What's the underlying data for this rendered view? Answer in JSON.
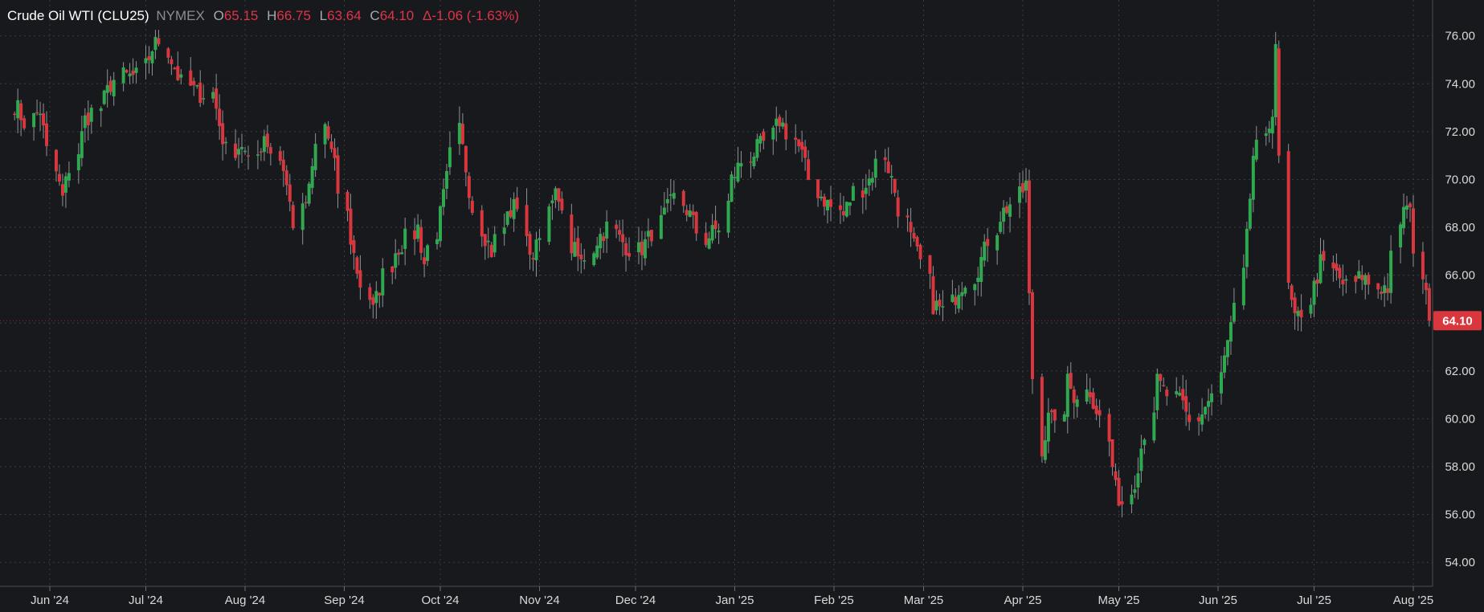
{
  "header": {
    "symbol": "Crude Oil WTI (CLU25)",
    "exchange": "NYMEX",
    "open_label": "O",
    "open": "65.15",
    "high_label": "H",
    "high": "66.75",
    "low_label": "L",
    "low": "63.64",
    "close_label": "C",
    "close": "64.10",
    "change": "Δ-1.06 (-1.63%)"
  },
  "colors": {
    "background": "#17191c",
    "up": "#2fa84f",
    "down": "#d9363e",
    "grid": "#3a3d42",
    "axis_text": "#d9d9d9",
    "price_tag": "#d9363e"
  },
  "chart_data": {
    "type": "candlestick",
    "y_axis": {
      "position": "right",
      "min": 53,
      "max": 77.5,
      "ticks": [
        "54.00",
        "56.00",
        "58.00",
        "60.00",
        "62.00",
        "64.00",
        "66.00",
        "68.00",
        "70.00",
        "72.00",
        "74.00",
        "76.00"
      ]
    },
    "x_axis": {
      "labels": [
        "Jun '24",
        "Jul '24",
        "Aug '24",
        "Sep '24",
        "Oct '24",
        "Nov '24",
        "Dec '24",
        "Jan '25",
        "Feb '25",
        "Mar '25",
        "Apr '25",
        "May '25",
        "Jun '25",
        "Jul '25",
        "Aug '25"
      ]
    },
    "last_price": "64.10",
    "grid": true,
    "close_series_approx": [
      {
        "date": "May 21 '24",
        "close": 73.2
      },
      {
        "date": "May 24 '24",
        "close": 72.4
      },
      {
        "date": "May 29 '24",
        "close": 72.9
      },
      {
        "date": "Jun 03 '24",
        "close": 70.3
      },
      {
        "date": "Jun 05 '24",
        "close": 69.2
      },
      {
        "date": "Jun 07 '24",
        "close": 70.5
      },
      {
        "date": "Jun 12 '24",
        "close": 72.5
      },
      {
        "date": "Jun 17 '24",
        "close": 73.0
      },
      {
        "date": "Jun 20 '24",
        "close": 74.0
      },
      {
        "date": "Jun 24 '24",
        "close": 74.3
      },
      {
        "date": "Jun 28 '24",
        "close": 74.3
      },
      {
        "date": "Jul 03 '24",
        "close": 75.5
      },
      {
        "date": "Jul 05 '24",
        "close": 75.8
      },
      {
        "date": "Jul 09 '24",
        "close": 75.0
      },
      {
        "date": "Jul 12 '24",
        "close": 74.0
      },
      {
        "date": "Jul 17 '24",
        "close": 73.6
      },
      {
        "date": "Jul 22 '24",
        "close": 73.6
      },
      {
        "date": "Jul 24 '24",
        "close": 72.3
      },
      {
        "date": "Jul 26 '24",
        "close": 71.2
      },
      {
        "date": "Jul 31 '24",
        "close": 71.5
      },
      {
        "date": "Aug 02 '24",
        "close": 70.6
      },
      {
        "date": "Aug 07 '24",
        "close": 71.9
      },
      {
        "date": "Aug 09 '24",
        "close": 71.2
      },
      {
        "date": "Aug 13 '24",
        "close": 70.5
      },
      {
        "date": "Aug 16 '24",
        "close": 68.2
      },
      {
        "date": "Aug 21 '24",
        "close": 69.5
      },
      {
        "date": "Aug 26 '24",
        "close": 72.3
      },
      {
        "date": "Aug 29 '24",
        "close": 70.5
      },
      {
        "date": "Sep 03 '24",
        "close": 67.5
      },
      {
        "date": "Sep 05 '24",
        "close": 66.2
      },
      {
        "date": "Sep 10 '24",
        "close": 64.5
      },
      {
        "date": "Sep 13 '24",
        "close": 66.0
      },
      {
        "date": "Sep 17 '24",
        "close": 67.0
      },
      {
        "date": "Sep 20 '24",
        "close": 67.5
      },
      {
        "date": "Sep 24 '24",
        "close": 68.0
      },
      {
        "date": "Sep 26 '24",
        "close": 66.5
      },
      {
        "date": "Oct 01 '24",
        "close": 68.5
      },
      {
        "date": "Oct 03 '24",
        "close": 70.0
      },
      {
        "date": "Oct 07 '24",
        "close": 72.0
      },
      {
        "date": "Oct 09 '24",
        "close": 70.5
      },
      {
        "date": "Oct 14 '24",
        "close": 68.0
      },
      {
        "date": "Oct 17 '24",
        "close": 67.0
      },
      {
        "date": "Oct 22 '24",
        "close": 68.5
      },
      {
        "date": "Oct 25 '24",
        "close": 69.0
      },
      {
        "date": "Oct 29 '24",
        "close": 66.5
      },
      {
        "date": "Oct 31 '24",
        "close": 67.5
      },
      {
        "date": "Nov 05 '24",
        "close": 69.0
      },
      {
        "date": "Nov 07 '24",
        "close": 69.5
      },
      {
        "date": "Nov 11 '24",
        "close": 67.2
      },
      {
        "date": "Nov 14 '24",
        "close": 66.5
      },
      {
        "date": "Nov 19 '24",
        "close": 67.5
      },
      {
        "date": "Nov 22 '24",
        "close": 68.0
      },
      {
        "date": "Nov 26 '24",
        "close": 67.5
      },
      {
        "date": "Dec 02 '24",
        "close": 67.0
      },
      {
        "date": "Dec 05 '24",
        "close": 67.5
      },
      {
        "date": "Dec 10 '24",
        "close": 68.5
      },
      {
        "date": "Dec 13 '24",
        "close": 69.2
      },
      {
        "date": "Dec 18 '24",
        "close": 68.5
      },
      {
        "date": "Dec 23 '24",
        "close": 67.5
      },
      {
        "date": "Dec 27 '24",
        "close": 68.0
      },
      {
        "date": "Dec 31 '24",
        "close": 70.0
      },
      {
        "date": "Jan 06 '25",
        "close": 71.0
      },
      {
        "date": "Jan 10 '25",
        "close": 71.5
      },
      {
        "date": "Jan 15 '25",
        "close": 72.5
      },
      {
        "date": "Jan 17 '25",
        "close": 72.0
      },
      {
        "date": "Jan 22 '25",
        "close": 71.0
      },
      {
        "date": "Jan 27 '25",
        "close": 69.5
      },
      {
        "date": "Jan 30 '25",
        "close": 69.0
      },
      {
        "date": "Feb 04 '25",
        "close": 68.5
      },
      {
        "date": "Feb 07 '25",
        "close": 69.5
      },
      {
        "date": "Feb 12 '25",
        "close": 70.0
      },
      {
        "date": "Feb 17 '25",
        "close": 71.0
      },
      {
        "date": "Feb 20 '25",
        "close": 69.5
      },
      {
        "date": "Feb 25 '25",
        "close": 67.5
      },
      {
        "date": "Feb 28 '25",
        "close": 66.5
      },
      {
        "date": "Mar 04 '25",
        "close": 64.8
      },
      {
        "date": "Mar 07 '25",
        "close": 64.5
      },
      {
        "date": "Mar 12 '25",
        "close": 65.5
      },
      {
        "date": "Mar 17 '25",
        "close": 66.0
      },
      {
        "date": "Mar 20 '25",
        "close": 67.0
      },
      {
        "date": "Mar 25 '25",
        "close": 68.5
      },
      {
        "date": "Mar 28 '25",
        "close": 69.0
      },
      {
        "date": "Apr 02 '25",
        "close": 69.8
      },
      {
        "date": "Apr 03 '25",
        "close": 65.0
      },
      {
        "date": "Apr 07 '25",
        "close": 58.5
      },
      {
        "date": "Apr 09 '25",
        "close": 60.5
      },
      {
        "date": "Apr 11 '25",
        "close": 59.5
      },
      {
        "date": "Apr 15 '25",
        "close": 61.5
      },
      {
        "date": "Apr 17 '25",
        "close": 61.0
      },
      {
        "date": "Apr 22 '25",
        "close": 61.2
      },
      {
        "date": "Apr 25 '25",
        "close": 60.0
      },
      {
        "date": "Apr 30 '25",
        "close": 57.0
      },
      {
        "date": "May 02 '25",
        "close": 56.5
      },
      {
        "date": "May 06 '25",
        "close": 57.5
      },
      {
        "date": "May 09 '25",
        "close": 59.5
      },
      {
        "date": "May 13 '25",
        "close": 61.5
      },
      {
        "date": "May 16 '25",
        "close": 61.0
      },
      {
        "date": "May 21 '25",
        "close": 60.5
      },
      {
        "date": "May 23 '25",
        "close": 59.8
      },
      {
        "date": "May 28 '25",
        "close": 60.5
      },
      {
        "date": "May 30 '25",
        "close": 61.0
      },
      {
        "date": "Jun 03 '25",
        "close": 62.5
      },
      {
        "date": "Jun 06 '25",
        "close": 64.5
      },
      {
        "date": "Jun 10 '25",
        "close": 67.5
      },
      {
        "date": "Jun 12 '25",
        "close": 71.0
      },
      {
        "date": "Jun 16 '25",
        "close": 71.5
      },
      {
        "date": "Jun 18 '25",
        "close": 73.0
      },
      {
        "date": "Jun 19 '25",
        "close": 75.8
      },
      {
        "date": "Jun 23 '25",
        "close": 65.5
      },
      {
        "date": "Jun 25 '25",
        "close": 64.0
      },
      {
        "date": "Jun 27 '25",
        "close": 64.5
      },
      {
        "date": "Jul 01 '25",
        "close": 65.5
      },
      {
        "date": "Jul 03 '25",
        "close": 66.5
      },
      {
        "date": "Jul 08 '25",
        "close": 66.0
      },
      {
        "date": "Jul 11 '25",
        "close": 65.5
      },
      {
        "date": "Jul 16 '25",
        "close": 66.0
      },
      {
        "date": "Jul 21 '25",
        "close": 65.5
      },
      {
        "date": "Jul 24 '25",
        "close": 65.5
      },
      {
        "date": "Jul 29 '25",
        "close": 69.0
      },
      {
        "date": "Jul 31 '25",
        "close": 68.5
      },
      {
        "date": "Aug 04 '25",
        "close": 66.0
      },
      {
        "date": "Aug 05 '25",
        "close": 65.0
      },
      {
        "date": "Aug 06 '25",
        "close": 64.1
      }
    ]
  }
}
